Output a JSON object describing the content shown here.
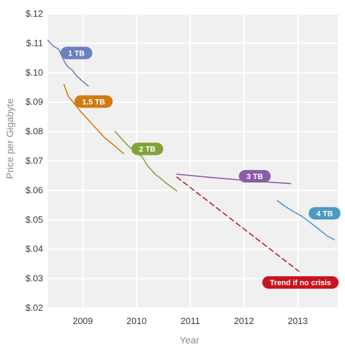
{
  "chart_data": {
    "type": "line",
    "xlabel": "Year",
    "ylabel": "Price per Gigabyte",
    "x_ticks": [
      "2009",
      "2010",
      "2011",
      "2012",
      "2013"
    ],
    "y_ticks": [
      "$.02",
      "$.03",
      "$.04",
      "$.05",
      "$.06",
      "$.07",
      "$.08",
      "$.09",
      "$.10",
      "$.11",
      "$.12"
    ],
    "xlim": [
      2008.35,
      2013.75
    ],
    "ylim": [
      0.02,
      0.12
    ],
    "grid": "horizontal",
    "series": [
      {
        "name": "1 TB",
        "color": "#6b80c0",
        "points": [
          [
            2008.35,
            0.111
          ],
          [
            2008.45,
            0.109
          ],
          [
            2008.55,
            0.108
          ],
          [
            2008.65,
            0.104
          ],
          [
            2008.72,
            0.102
          ],
          [
            2008.8,
            0.101
          ],
          [
            2008.88,
            0.099
          ],
          [
            2009.0,
            0.097
          ],
          [
            2009.1,
            0.0955
          ]
        ]
      },
      {
        "name": "1.5 TB",
        "color": "#d27a12",
        "points": [
          [
            2008.65,
            0.096
          ],
          [
            2008.73,
            0.092
          ],
          [
            2008.82,
            0.09
          ],
          [
            2008.95,
            0.087
          ],
          [
            2009.1,
            0.084
          ],
          [
            2009.25,
            0.081
          ],
          [
            2009.4,
            0.078
          ],
          [
            2009.6,
            0.075
          ],
          [
            2009.76,
            0.0725
          ]
        ]
      },
      {
        "name": "2 TB",
        "color": "#80a43a",
        "points": [
          [
            2009.6,
            0.08
          ],
          [
            2009.75,
            0.077
          ],
          [
            2009.85,
            0.075
          ],
          [
            2009.95,
            0.0735
          ],
          [
            2010.1,
            0.0715
          ],
          [
            2010.2,
            0.0685
          ],
          [
            2010.35,
            0.0655
          ],
          [
            2010.55,
            0.0625
          ],
          [
            2010.75,
            0.0598
          ]
        ]
      },
      {
        "name": "3 TB",
        "color": "#8a5ca8",
        "points": [
          [
            2010.75,
            0.0655
          ],
          [
            2011.5,
            0.0642
          ],
          [
            2012.3,
            0.063
          ],
          [
            2012.87,
            0.0623
          ]
        ]
      },
      {
        "name": "4 TB",
        "color": "#4c99c2",
        "points": [
          [
            2012.62,
            0.0565
          ],
          [
            2012.77,
            0.0545
          ],
          [
            2012.92,
            0.0528
          ],
          [
            2013.05,
            0.0515
          ],
          [
            2013.2,
            0.0495
          ],
          [
            2013.38,
            0.047
          ],
          [
            2013.55,
            0.0445
          ],
          [
            2013.68,
            0.0432
          ]
        ]
      },
      {
        "name": "Trend if no crisis",
        "color": "#b01e1e",
        "dashed": true,
        "points": [
          [
            2010.75,
            0.0645
          ],
          [
            2013.02,
            0.0325
          ]
        ]
      }
    ],
    "labels": [
      {
        "text": "1 TB",
        "color": "#6b80c0",
        "x": 2008.88,
        "y": 0.1067
      },
      {
        "text": "1.5 TB",
        "color": "#d27a12",
        "x": 2009.2,
        "y": 0.0902
      },
      {
        "text": "2 TB",
        "color": "#80a43a",
        "x": 2010.2,
        "y": 0.0741
      },
      {
        "text": "3 TB",
        "color": "#8a5ca8",
        "x": 2012.2,
        "y": 0.0648
      },
      {
        "text": "4 TB",
        "color": "#4c99c2",
        "x": 2013.5,
        "y": 0.0522
      },
      {
        "text": "Trend if no crisis",
        "color": "#c8141e",
        "x": 2013.05,
        "y": 0.0287
      }
    ]
  }
}
